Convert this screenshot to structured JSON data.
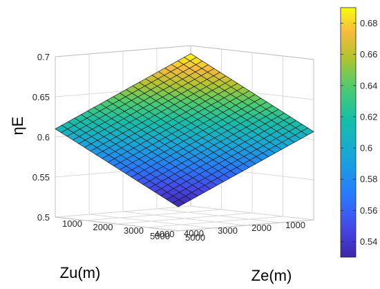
{
  "chart_data": {
    "type": "surface3d",
    "xlabel": "Ze(m)",
    "ylabel": "Zu(m)",
    "zlabel": "ηE",
    "x_ticks": [
      1000,
      2000,
      3000,
      4000,
      5000
    ],
    "y_ticks": [
      1000,
      2000,
      3000,
      4000,
      5000
    ],
    "z_ticks": [
      0.5,
      0.55,
      0.6,
      0.65,
      0.7
    ],
    "z_tick_labels": [
      "0.5",
      "0.55",
      "0.6",
      "0.65",
      "0.7"
    ],
    "xlim": [
      1000,
      5000
    ],
    "ylim": [
      1000,
      5000
    ],
    "zlim": [
      0.5,
      0.7
    ],
    "grid": true,
    "grid_resolution": 21,
    "corner_values": [
      {
        "ze": 1000,
        "zu": 1000,
        "eta": 0.69
      },
      {
        "ze": 5000,
        "zu": 5000,
        "eta": 0.53
      },
      {
        "ze": 1000,
        "zu": 5000,
        "eta": 0.61
      },
      {
        "ze": 5000,
        "zu": 1000,
        "eta": 0.61
      }
    ],
    "colormap": "parula",
    "colorbar": {
      "min": 0.53,
      "max": 0.69,
      "ticks": [
        0.54,
        0.56,
        0.58,
        0.6,
        0.62,
        0.64,
        0.66,
        0.68
      ],
      "tick_labels": [
        "0.54",
        "0.56",
        "0.58",
        "0.6",
        "0.62",
        "0.64",
        "0.66",
        "0.68"
      ]
    }
  }
}
